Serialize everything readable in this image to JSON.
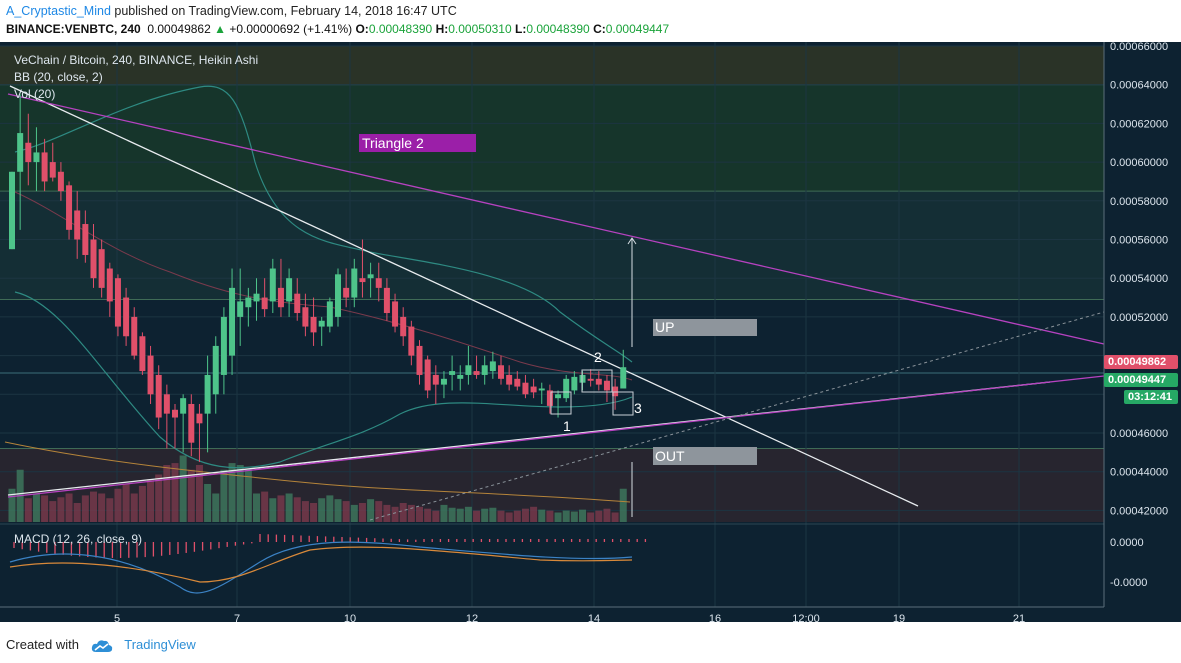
{
  "header": {
    "author": "A_Cryptastic_Mind",
    "published": "published on TradingView.com, February 14, 2018 16:47 UTC",
    "symbol": "BINANCE:VENBTC, 240",
    "last": "0.00049862",
    "change": "+0.00000692 (+1.41%)",
    "o_label": "O:",
    "o": "0.00048390",
    "h_label": "H:",
    "h": "0.00050310",
    "l_label": "L:",
    "l": "0.00048390",
    "c_label": "C:",
    "c": "0.00049447"
  },
  "legend": {
    "title": "VeChain / Bitcoin, 240, BINANCE, Heikin Ashi",
    "bb": "BB (20, close, 2)",
    "vol": "Vol (20)",
    "macd": "MACD (12, 26, close, 9)"
  },
  "annotations": {
    "triangle": "Triangle 2",
    "up": "UP",
    "out": "OUT",
    "p1": "1",
    "p2": "2",
    "p3": "3"
  },
  "price_labels": {
    "red": "0.00049862",
    "green": "0.00049447",
    "timer": "03:12:41"
  },
  "footer": {
    "created": "Created with",
    "brand": "TradingView"
  },
  "colors": {
    "background": "#0d2231",
    "up": "#4ec48a",
    "down": "#e0506a",
    "triangle_label": "#9b1fa8",
    "purple_line": "#b642c0",
    "trend_line": "#e8ecef"
  },
  "chart_data": {
    "type": "candlestick",
    "style": "Heikin Ashi",
    "symbol": "VENBTC",
    "ylim": [
      0.0004,
      0.00066
    ],
    "y_ticks": [
      "0.00066000",
      "0.00064000",
      "0.00062000",
      "0.00060000",
      "0.00058000",
      "0.00056000",
      "0.00054000",
      "0.00052000",
      "0.00046000",
      "0.00044000",
      "0.00042000"
    ],
    "x_ticks": [
      "5",
      "7",
      "10",
      "12",
      "14",
      "16",
      "12:00",
      "19",
      "21"
    ],
    "macd_ticks": [
      "0.0000",
      "-0.0000"
    ],
    "candles": [
      [
        0.000555,
        0.000595,
        0.000555,
        0.000595
      ],
      [
        0.000595,
        0.000635,
        0.000565,
        0.000615
      ],
      [
        0.00061,
        0.000625,
        0.000588,
        0.0006
      ],
      [
        0.0006,
        0.000618,
        0.000585,
        0.000605
      ],
      [
        0.000605,
        0.000612,
        0.000585,
        0.00059
      ],
      [
        0.0006,
        0.00061,
        0.00059,
        0.000592
      ],
      [
        0.000595,
        0.0006,
        0.00058,
        0.000585
      ],
      [
        0.000588,
        0.00059,
        0.00056,
        0.000565
      ],
      [
        0.000575,
        0.000585,
        0.00055,
        0.00056
      ],
      [
        0.000568,
        0.000575,
        0.000548,
        0.000552
      ],
      [
        0.00056,
        0.000568,
        0.000535,
        0.00054
      ],
      [
        0.000555,
        0.00056,
        0.00053,
        0.000535
      ],
      [
        0.000545,
        0.000548,
        0.00052,
        0.000528
      ],
      [
        0.00054,
        0.000542,
        0.00051,
        0.000515
      ],
      [
        0.00053,
        0.000535,
        0.000505,
        0.00051
      ],
      [
        0.00052,
        0.000525,
        0.000498,
        0.0005
      ],
      [
        0.00051,
        0.000512,
        0.00049,
        0.000492
      ],
      [
        0.0005,
        0.000505,
        0.000475,
        0.00048
      ],
      [
        0.00049,
        0.000495,
        0.000462,
        0.000468
      ],
      [
        0.00048,
        0.000485,
        0.000452,
        0.00047
      ],
      [
        0.000472,
        0.000475,
        0.000452,
        0.000468
      ],
      [
        0.00047,
        0.00048,
        0.00045,
        0.000478
      ],
      [
        0.000475,
        0.00048,
        0.000448,
        0.000455
      ],
      [
        0.00047,
        0.000475,
        0.000445,
        0.000465
      ],
      [
        0.00047,
        0.0005,
        0.00045,
        0.00049
      ],
      [
        0.00048,
        0.00051,
        0.00047,
        0.000505
      ],
      [
        0.00049,
        0.000525,
        0.00048,
        0.00052
      ],
      [
        0.0005,
        0.000545,
        0.00049,
        0.000535
      ],
      [
        0.00052,
        0.000545,
        0.000505,
        0.000528
      ],
      [
        0.000525,
        0.000535,
        0.000515,
        0.00053
      ],
      [
        0.000528,
        0.00054,
        0.000518,
        0.000532
      ],
      [
        0.00053,
        0.00054,
        0.00052,
        0.000524
      ],
      [
        0.000528,
        0.00055,
        0.000522,
        0.000545
      ],
      [
        0.000535,
        0.00055,
        0.00052,
        0.000525
      ],
      [
        0.000528,
        0.000545,
        0.00052,
        0.00054
      ],
      [
        0.000532,
        0.00054,
        0.000518,
        0.000522
      ],
      [
        0.000525,
        0.000532,
        0.00051,
        0.000515
      ],
      [
        0.00052,
        0.00053,
        0.000505,
        0.000512
      ],
      [
        0.000515,
        0.00052,
        0.000505,
        0.000518
      ],
      [
        0.000515,
        0.00053,
        0.000512,
        0.000528
      ],
      [
        0.00052,
        0.000545,
        0.000515,
        0.000542
      ],
      [
        0.000535,
        0.000545,
        0.000525,
        0.00053
      ],
      [
        0.00053,
        0.00055,
        0.000525,
        0.000545
      ],
      [
        0.00054,
        0.00056,
        0.00053,
        0.000538
      ],
      [
        0.00054,
        0.000548,
        0.00053,
        0.000542
      ],
      [
        0.00054,
        0.000548,
        0.000528,
        0.000535
      ],
      [
        0.000535,
        0.00054,
        0.000518,
        0.000522
      ],
      [
        0.000528,
        0.000532,
        0.000512,
        0.000515
      ],
      [
        0.00052,
        0.000525,
        0.000505,
        0.00051
      ],
      [
        0.000515,
        0.000518,
        0.000495,
        0.0005
      ],
      [
        0.000505,
        0.000508,
        0.000485,
        0.00049
      ],
      [
        0.000498,
        0.0005,
        0.000478,
        0.000482
      ],
      [
        0.00049,
        0.000495,
        0.000475,
        0.000485
      ],
      [
        0.000485,
        0.000492,
        0.000478,
        0.000488
      ],
      [
        0.00049,
        0.0005,
        0.000482,
        0.000492
      ],
      [
        0.000488,
        0.000495,
        0.000482,
        0.00049
      ],
      [
        0.00049,
        0.000505,
        0.000485,
        0.000495
      ],
      [
        0.000492,
        0.0005,
        0.000488,
        0.00049
      ],
      [
        0.00049,
        0.0005,
        0.000485,
        0.000495
      ],
      [
        0.000492,
        0.000502,
        0.000488,
        0.000497
      ],
      [
        0.000495,
        0.0005,
        0.000485,
        0.000488
      ],
      [
        0.00049,
        0.000495,
        0.000482,
        0.000485
      ],
      [
        0.000488,
        0.000492,
        0.000482,
        0.000484
      ],
      [
        0.000486,
        0.00049,
        0.000478,
        0.00048
      ],
      [
        0.000484,
        0.000488,
        0.000478,
        0.000481
      ],
      [
        0.000482,
        0.000486,
        0.000475,
        0.000483
      ],
      [
        0.000482,
        0.000485,
        0.00047,
        0.000474
      ],
      [
        0.000478,
        0.000482,
        0.000468,
        0.00048
      ],
      [
        0.000478,
        0.00049,
        0.000476,
        0.000488
      ],
      [
        0.000482,
        0.000492,
        0.00048,
        0.000489
      ],
      [
        0.000486,
        0.000492,
        0.000482,
        0.00049
      ],
      [
        0.000488,
        0.000493,
        0.000484,
        0.000487
      ],
      [
        0.000488,
        0.000492,
        0.000482,
        0.000485
      ],
      [
        0.000487,
        0.00049,
        0.000476,
        0.000482
      ],
      [
        0.000484,
        0.000488,
        0.000472,
        0.000479
      ],
      [
        0.000483,
        0.000503,
        0.000483,
        0.000494
      ]
    ],
    "volume_level": [
      0.35,
      0.55,
      0.25,
      0.3,
      0.28,
      0.22,
      0.26,
      0.3,
      0.2,
      0.28,
      0.32,
      0.3,
      0.25,
      0.35,
      0.4,
      0.3,
      0.38,
      0.45,
      0.5,
      0.6,
      0.62,
      0.7,
      0.55,
      0.6,
      0.4,
      0.3,
      0.55,
      0.62,
      0.6,
      0.55,
      0.3,
      0.32,
      0.25,
      0.28,
      0.3,
      0.26,
      0.22,
      0.2,
      0.25,
      0.28,
      0.24,
      0.22,
      0.18,
      0.2,
      0.24,
      0.22,
      0.18,
      0.16,
      0.2,
      0.18,
      0.16,
      0.14,
      0.12,
      0.18,
      0.15,
      0.14,
      0.16,
      0.12,
      0.14,
      0.15,
      0.12,
      0.1,
      0.12,
      0.14,
      0.16,
      0.13,
      0.12,
      0.1,
      0.12,
      0.11,
      0.13,
      0.1,
      0.12,
      0.14,
      0.1,
      0.35
    ]
  }
}
